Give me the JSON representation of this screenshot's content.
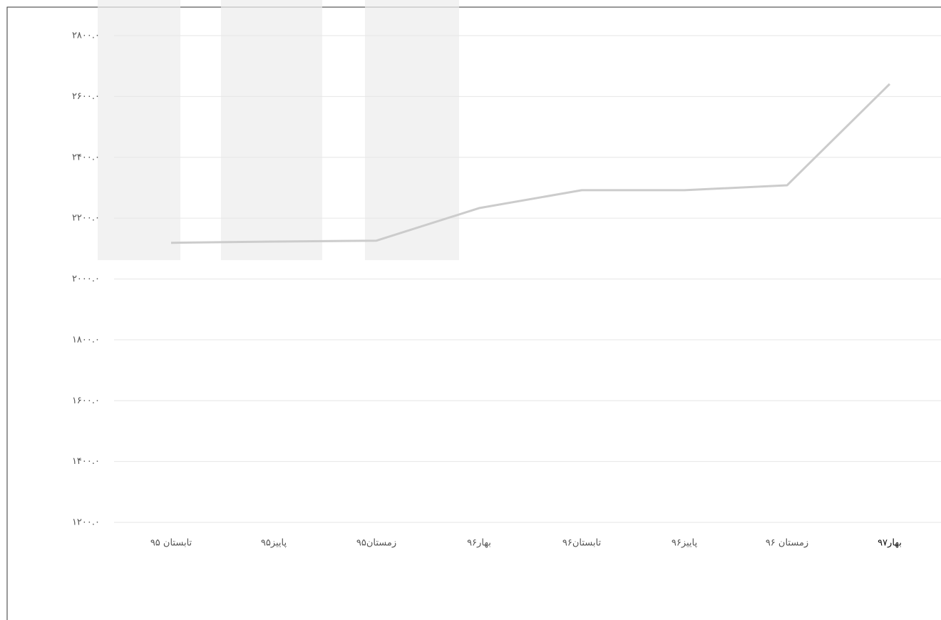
{
  "chart_data": {
    "type": "line",
    "categories": [
      "تابستان ۹۵",
      "پاییز۹۵",
      "زمستان۹۵",
      "بهار۹۶",
      "تابستان۹۶",
      "پاییز۹۶",
      "زمستان ۹۶",
      "بهار۹۷"
    ],
    "series": [
      {
        "color": "#cccccc",
        "values": [
          2119,
          2123,
          2126,
          2233,
          2292,
          2292,
          2308,
          2641
        ]
      }
    ],
    "ylim": [
      1200,
      2800
    ],
    "yticks": [
      {
        "value": 1200,
        "label": "۱۲۰۰.۰"
      },
      {
        "value": 1400,
        "label": "۱۴۰۰.۰"
      },
      {
        "value": 1600,
        "label": "۱۶۰۰.۰"
      },
      {
        "value": 1800,
        "label": "۱۸۰۰.۰"
      },
      {
        "value": 2000,
        "label": "۲۰۰۰.۰"
      },
      {
        "value": 2200,
        "label": "۲۲۰۰.۰"
      },
      {
        "value": 2400,
        "label": "۲۴۰۰.۰"
      },
      {
        "value": 2600,
        "label": "۲۶۰۰.۰"
      },
      {
        "value": 2800,
        "label": "۲۸۰۰.۰"
      }
    ],
    "grid": true
  }
}
